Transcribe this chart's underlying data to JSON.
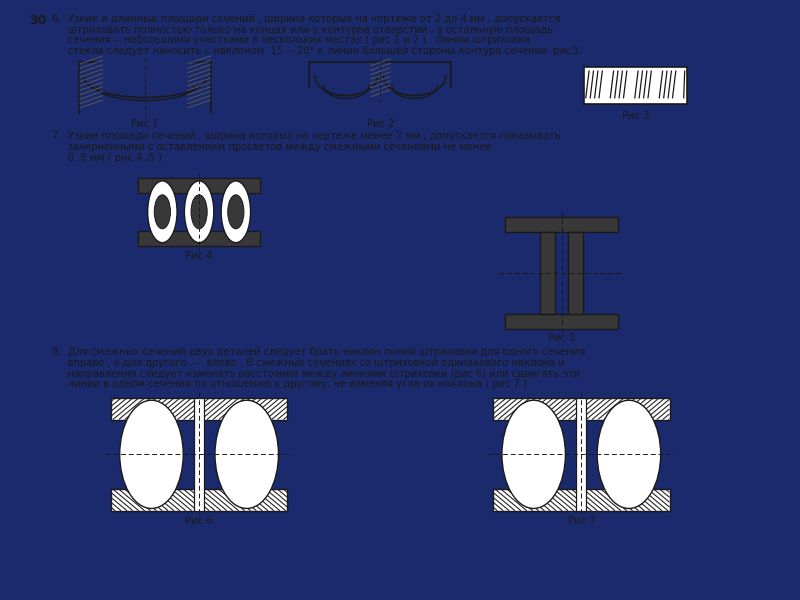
{
  "bg_color": "#1a2a6c",
  "page_bg": "#f0f0f0",
  "text_color": "#1a1a1a",
  "page_num": "30",
  "title6_l1": "6.  Узкие и длинные площади сечений , ширина которых на чертеже от 2 до 4 мм , допускается",
  "title6_l2": "     штриховать полностью только на концах или у контуров отверстий , а остальную площадь",
  "title6_l3": "     сечения -- небольшими участками в нескольких местах ( рис 1 и 2 ) . Линии штриховки",
  "title6_l4": "     стекла следует наносить с наклоном  15 -- 20° к линии большей стороны контура сечения  рис3.",
  "title7_l1": "7.  Узкие площади сечений , ширина которых на чертеже менее 2 мм , допускается показывать",
  "title7_l2": "     зачернёнными с оставлением просветов между смежными сечениями не менее",
  "title7_l3": "     0. 8 мм ( рис 4 ,5 )",
  "title8_l1": "8.  Для смежных сечений двух деталей следует брать наклон линий штриховки для одного сечения",
  "title8_l2": "     вправо , а для другого  --  влево . В смежных сечениях со штриховкой одинакового наклона и",
  "title8_l3": "     направления следует изменять расстояние между линиями штриховки (рис 6) или сдвигать эти",
  "title8_l4": "     линии в одном сечении по отношению к другому, не изменяя угла их наклона ( рис 7 )",
  "fig1_label": "Рис 1",
  "fig2_label": "Рис 2",
  "fig3_label": "Рис 3",
  "fig4_label": "Рис 4",
  "fig5_label": "Рис 5",
  "fig6_label": "Рис 6",
  "fig7_label": "Рис 7",
  "dark_gray": "#383838",
  "hatch_color": "#555555",
  "black": "#000000",
  "white": "#ffffff",
  "line_color": "#1a1a1a"
}
